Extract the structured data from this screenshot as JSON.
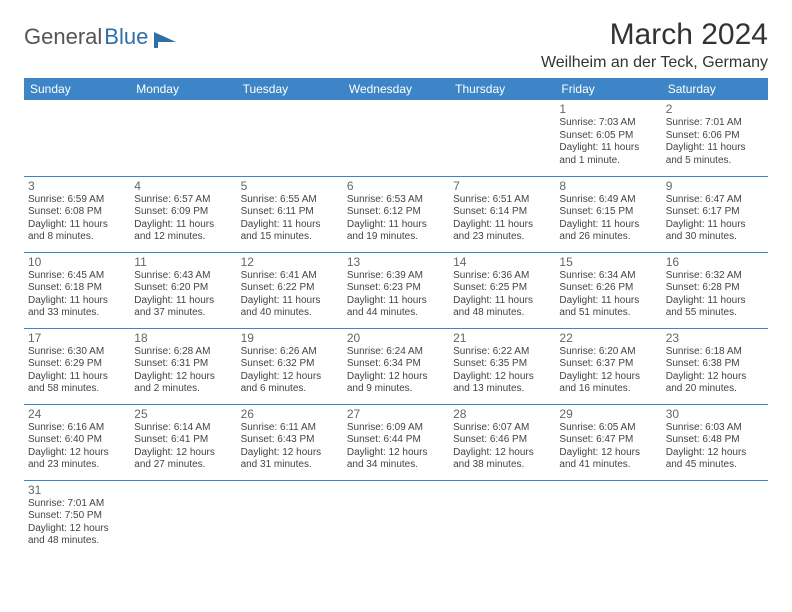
{
  "logo": {
    "text1": "General",
    "text2": "Blue"
  },
  "title": "March 2024",
  "location": "Weilheim an der Teck, Germany",
  "daysOfWeek": [
    "Sunday",
    "Monday",
    "Tuesday",
    "Wednesday",
    "Thursday",
    "Friday",
    "Saturday"
  ],
  "colors": {
    "headerBg": "#3d85c6",
    "headerText": "#ffffff",
    "border": "#3d85c6"
  },
  "weeks": [
    [
      {
        "n": "",
        "sr": "",
        "ss": "",
        "dl": ""
      },
      {
        "n": "",
        "sr": "",
        "ss": "",
        "dl": ""
      },
      {
        "n": "",
        "sr": "",
        "ss": "",
        "dl": ""
      },
      {
        "n": "",
        "sr": "",
        "ss": "",
        "dl": ""
      },
      {
        "n": "",
        "sr": "",
        "ss": "",
        "dl": ""
      },
      {
        "n": "1",
        "sr": "Sunrise: 7:03 AM",
        "ss": "Sunset: 6:05 PM",
        "dl": "Daylight: 11 hours and 1 minute."
      },
      {
        "n": "2",
        "sr": "Sunrise: 7:01 AM",
        "ss": "Sunset: 6:06 PM",
        "dl": "Daylight: 11 hours and 5 minutes."
      }
    ],
    [
      {
        "n": "3",
        "sr": "Sunrise: 6:59 AM",
        "ss": "Sunset: 6:08 PM",
        "dl": "Daylight: 11 hours and 8 minutes."
      },
      {
        "n": "4",
        "sr": "Sunrise: 6:57 AM",
        "ss": "Sunset: 6:09 PM",
        "dl": "Daylight: 11 hours and 12 minutes."
      },
      {
        "n": "5",
        "sr": "Sunrise: 6:55 AM",
        "ss": "Sunset: 6:11 PM",
        "dl": "Daylight: 11 hours and 15 minutes."
      },
      {
        "n": "6",
        "sr": "Sunrise: 6:53 AM",
        "ss": "Sunset: 6:12 PM",
        "dl": "Daylight: 11 hours and 19 minutes."
      },
      {
        "n": "7",
        "sr": "Sunrise: 6:51 AM",
        "ss": "Sunset: 6:14 PM",
        "dl": "Daylight: 11 hours and 23 minutes."
      },
      {
        "n": "8",
        "sr": "Sunrise: 6:49 AM",
        "ss": "Sunset: 6:15 PM",
        "dl": "Daylight: 11 hours and 26 minutes."
      },
      {
        "n": "9",
        "sr": "Sunrise: 6:47 AM",
        "ss": "Sunset: 6:17 PM",
        "dl": "Daylight: 11 hours and 30 minutes."
      }
    ],
    [
      {
        "n": "10",
        "sr": "Sunrise: 6:45 AM",
        "ss": "Sunset: 6:18 PM",
        "dl": "Daylight: 11 hours and 33 minutes."
      },
      {
        "n": "11",
        "sr": "Sunrise: 6:43 AM",
        "ss": "Sunset: 6:20 PM",
        "dl": "Daylight: 11 hours and 37 minutes."
      },
      {
        "n": "12",
        "sr": "Sunrise: 6:41 AM",
        "ss": "Sunset: 6:22 PM",
        "dl": "Daylight: 11 hours and 40 minutes."
      },
      {
        "n": "13",
        "sr": "Sunrise: 6:39 AM",
        "ss": "Sunset: 6:23 PM",
        "dl": "Daylight: 11 hours and 44 minutes."
      },
      {
        "n": "14",
        "sr": "Sunrise: 6:36 AM",
        "ss": "Sunset: 6:25 PM",
        "dl": "Daylight: 11 hours and 48 minutes."
      },
      {
        "n": "15",
        "sr": "Sunrise: 6:34 AM",
        "ss": "Sunset: 6:26 PM",
        "dl": "Daylight: 11 hours and 51 minutes."
      },
      {
        "n": "16",
        "sr": "Sunrise: 6:32 AM",
        "ss": "Sunset: 6:28 PM",
        "dl": "Daylight: 11 hours and 55 minutes."
      }
    ],
    [
      {
        "n": "17",
        "sr": "Sunrise: 6:30 AM",
        "ss": "Sunset: 6:29 PM",
        "dl": "Daylight: 11 hours and 58 minutes."
      },
      {
        "n": "18",
        "sr": "Sunrise: 6:28 AM",
        "ss": "Sunset: 6:31 PM",
        "dl": "Daylight: 12 hours and 2 minutes."
      },
      {
        "n": "19",
        "sr": "Sunrise: 6:26 AM",
        "ss": "Sunset: 6:32 PM",
        "dl": "Daylight: 12 hours and 6 minutes."
      },
      {
        "n": "20",
        "sr": "Sunrise: 6:24 AM",
        "ss": "Sunset: 6:34 PM",
        "dl": "Daylight: 12 hours and 9 minutes."
      },
      {
        "n": "21",
        "sr": "Sunrise: 6:22 AM",
        "ss": "Sunset: 6:35 PM",
        "dl": "Daylight: 12 hours and 13 minutes."
      },
      {
        "n": "22",
        "sr": "Sunrise: 6:20 AM",
        "ss": "Sunset: 6:37 PM",
        "dl": "Daylight: 12 hours and 16 minutes."
      },
      {
        "n": "23",
        "sr": "Sunrise: 6:18 AM",
        "ss": "Sunset: 6:38 PM",
        "dl": "Daylight: 12 hours and 20 minutes."
      }
    ],
    [
      {
        "n": "24",
        "sr": "Sunrise: 6:16 AM",
        "ss": "Sunset: 6:40 PM",
        "dl": "Daylight: 12 hours and 23 minutes."
      },
      {
        "n": "25",
        "sr": "Sunrise: 6:14 AM",
        "ss": "Sunset: 6:41 PM",
        "dl": "Daylight: 12 hours and 27 minutes."
      },
      {
        "n": "26",
        "sr": "Sunrise: 6:11 AM",
        "ss": "Sunset: 6:43 PM",
        "dl": "Daylight: 12 hours and 31 minutes."
      },
      {
        "n": "27",
        "sr": "Sunrise: 6:09 AM",
        "ss": "Sunset: 6:44 PM",
        "dl": "Daylight: 12 hours and 34 minutes."
      },
      {
        "n": "28",
        "sr": "Sunrise: 6:07 AM",
        "ss": "Sunset: 6:46 PM",
        "dl": "Daylight: 12 hours and 38 minutes."
      },
      {
        "n": "29",
        "sr": "Sunrise: 6:05 AM",
        "ss": "Sunset: 6:47 PM",
        "dl": "Daylight: 12 hours and 41 minutes."
      },
      {
        "n": "30",
        "sr": "Sunrise: 6:03 AM",
        "ss": "Sunset: 6:48 PM",
        "dl": "Daylight: 12 hours and 45 minutes."
      }
    ],
    [
      {
        "n": "31",
        "sr": "Sunrise: 7:01 AM",
        "ss": "Sunset: 7:50 PM",
        "dl": "Daylight: 12 hours and 48 minutes."
      },
      {
        "n": "",
        "sr": "",
        "ss": "",
        "dl": ""
      },
      {
        "n": "",
        "sr": "",
        "ss": "",
        "dl": ""
      },
      {
        "n": "",
        "sr": "",
        "ss": "",
        "dl": ""
      },
      {
        "n": "",
        "sr": "",
        "ss": "",
        "dl": ""
      },
      {
        "n": "",
        "sr": "",
        "ss": "",
        "dl": ""
      },
      {
        "n": "",
        "sr": "",
        "ss": "",
        "dl": ""
      }
    ]
  ]
}
